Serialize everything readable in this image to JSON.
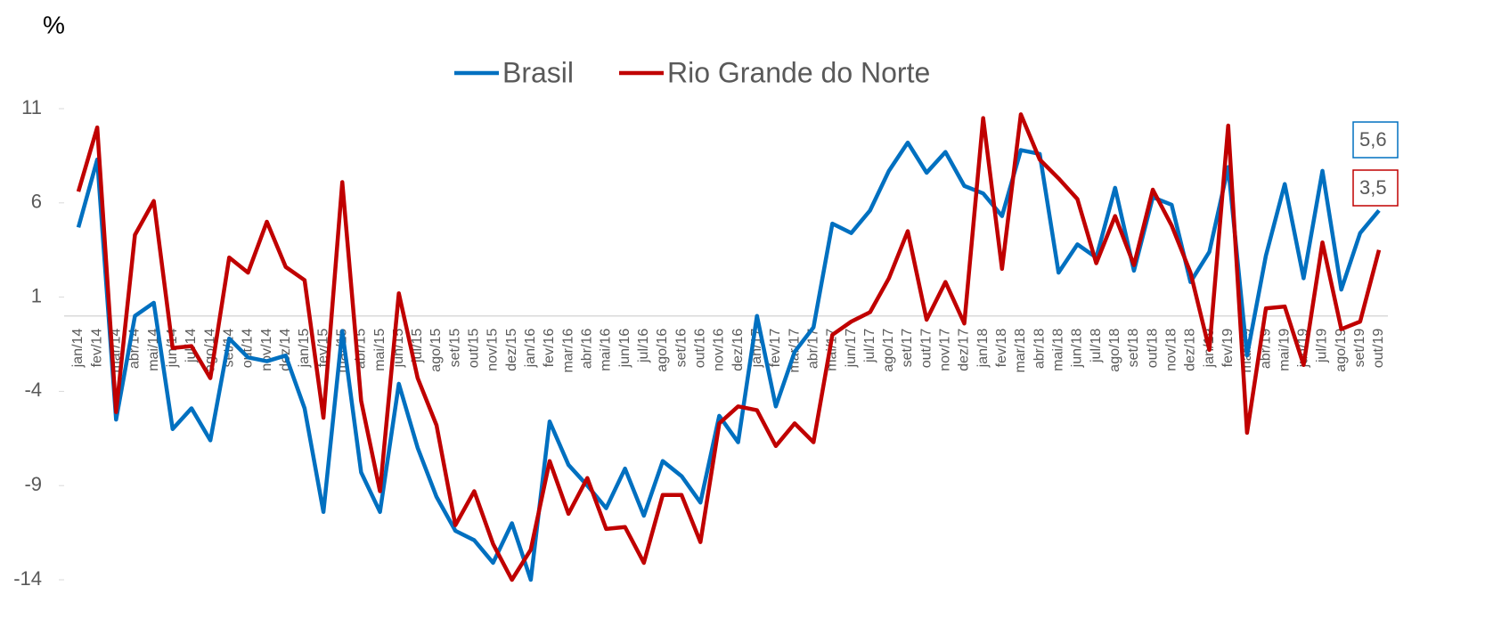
{
  "chart_data": {
    "type": "line",
    "title": "%",
    "categories": [
      "jan/14",
      "fev/14",
      "mar/14",
      "abr/14",
      "mai/14",
      "jun/14",
      "jul/14",
      "ago/14",
      "set/14",
      "out/14",
      "nov/14",
      "dez/14",
      "jan/15",
      "fev/15",
      "mar/15",
      "abr/15",
      "mai/15",
      "jun/15",
      "jul/15",
      "ago/15",
      "set/15",
      "out/15",
      "nov/15",
      "dez/15",
      "jan/16",
      "fev/16",
      "mar/16",
      "abr/16",
      "mai/16",
      "jun/16",
      "jul/16",
      "ago/16",
      "set/16",
      "out/16",
      "nov/16",
      "dez/16",
      "jan/17",
      "fev/17",
      "mar/17",
      "abr/17",
      "mai/17",
      "jun/17",
      "jul/17",
      "ago/17",
      "set/17",
      "out/17",
      "nov/17",
      "dez/17",
      "jan/18",
      "fev/18",
      "mar/18",
      "abr/18",
      "mai/18",
      "jun/18",
      "jul/18",
      "ago/18",
      "set/18",
      "out/18",
      "nov/18",
      "dez/18",
      "jan/19",
      "fev/19",
      "mar/19",
      "abr/19",
      "mai/19",
      "jun/19",
      "jul/19",
      "ago/19",
      "set/19",
      "out/19"
    ],
    "series": [
      {
        "name": "Brasil",
        "color": "#0070c0",
        "values": [
          4.7,
          8.3,
          -5.5,
          0.0,
          0.7,
          -6.0,
          -4.9,
          -6.6,
          -1.2,
          -2.2,
          -2.4,
          -2.1,
          -4.9,
          -10.4,
          -0.8,
          -8.3,
          -10.4,
          -3.6,
          -7.0,
          -9.6,
          -11.4,
          -11.9,
          -13.1,
          -11.0,
          -14.0,
          -5.6,
          -7.9,
          -9.0,
          -10.2,
          -8.1,
          -10.6,
          -7.7,
          -8.5,
          -9.9,
          -5.3,
          -6.7,
          0.0,
          -4.8,
          -1.9,
          -0.6,
          4.9,
          4.4,
          5.6,
          7.7,
          9.2,
          7.6,
          8.7,
          6.9,
          6.5,
          5.3,
          8.8,
          8.6,
          2.3,
          3.8,
          3.1,
          6.8,
          2.4,
          6.3,
          5.9,
          1.8,
          3.4,
          7.9,
          -2.1,
          3.2,
          7.0,
          2.0,
          7.7,
          1.4,
          4.4,
          5.6
        ],
        "value_labels": [
          null,
          null,
          null,
          null,
          null,
          null,
          null,
          null,
          null,
          null,
          null,
          null,
          null,
          null,
          null,
          null,
          null,
          null,
          null,
          null,
          null,
          null,
          null,
          null,
          null,
          null,
          null,
          null,
          null,
          null,
          null,
          null,
          null,
          null,
          null,
          null,
          null,
          null,
          null,
          null,
          null,
          null,
          null,
          null,
          null,
          null,
          null,
          null,
          null,
          null,
          null,
          null,
          null,
          null,
          null,
          null,
          null,
          null,
          null,
          null,
          null,
          null,
          null,
          null,
          null,
          null,
          null,
          null,
          null,
          "5,6"
        ]
      },
      {
        "name": "Rio Grande do Norte",
        "color": "#c00000",
        "values": [
          6.6,
          10.0,
          -5.1,
          4.3,
          6.1,
          -1.7,
          -1.6,
          -3.3,
          3.1,
          2.3,
          5.0,
          2.6,
          1.9,
          -5.4,
          7.1,
          -4.5,
          -9.3,
          1.2,
          -3.3,
          -5.8,
          -11.1,
          -9.3,
          -12.1,
          -14.0,
          -12.4,
          -7.7,
          -10.5,
          -8.6,
          -11.3,
          -11.2,
          -13.1,
          -9.5,
          -9.5,
          -12.0,
          -5.7,
          -4.8,
          -5.0,
          -6.9,
          -5.7,
          -6.7,
          -1.0,
          -0.3,
          0.2,
          2.0,
          4.5,
          -0.2,
          1.8,
          -0.4,
          10.5,
          2.5,
          10.7,
          8.3,
          7.3,
          6.2,
          2.8,
          5.3,
          2.7,
          6.7,
          4.8,
          2.3,
          -1.8,
          10.1,
          -6.2,
          0.4,
          0.5,
          -2.6,
          3.9,
          -0.7,
          -0.3,
          3.5
        ],
        "value_labels": [
          null,
          null,
          null,
          null,
          null,
          null,
          null,
          null,
          null,
          null,
          null,
          null,
          null,
          null,
          null,
          null,
          null,
          null,
          null,
          null,
          null,
          null,
          null,
          null,
          null,
          null,
          null,
          null,
          null,
          null,
          null,
          null,
          null,
          null,
          null,
          null,
          null,
          null,
          null,
          null,
          null,
          null,
          null,
          null,
          null,
          null,
          null,
          null,
          null,
          null,
          null,
          null,
          null,
          null,
          null,
          null,
          null,
          null,
          null,
          null,
          null,
          null,
          null,
          null,
          null,
          null,
          null,
          null,
          null,
          "3,5"
        ]
      }
    ],
    "ylim": [
      -14,
      11
    ],
    "yticks": [
      -14,
      -9,
      -4,
      1,
      6,
      11
    ],
    "legend": "top"
  }
}
